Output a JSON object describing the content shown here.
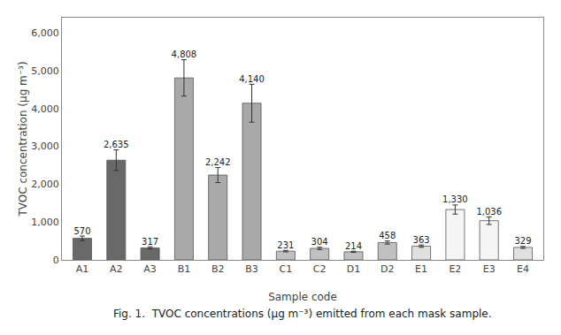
{
  "chart_data": {
    "type": "bar",
    "categories": [
      "A1",
      "A2",
      "A3",
      "B1",
      "B2",
      "B3",
      "C1",
      "C2",
      "D1",
      "D2",
      "E1",
      "E2",
      "E3",
      "E4"
    ],
    "values": [
      570,
      2635,
      317,
      4808,
      2242,
      4140,
      231,
      304,
      214,
      458,
      363,
      1330,
      1036,
      329
    ],
    "errors": [
      60,
      270,
      30,
      480,
      200,
      500,
      20,
      30,
      15,
      40,
      30,
      120,
      100,
      25
    ],
    "colors": [
      "#696969",
      "#696969",
      "#696969",
      "#a9a9a9",
      "#a9a9a9",
      "#a9a9a9",
      "#c0c0c0",
      "#c0c0c0",
      "#c0c0c0",
      "#c0c0c0",
      "#e0e0e0",
      "#f5f5f5",
      "#f5f5f5",
      "#e0e0e0"
    ],
    "data_labels": true,
    "value_labels": [
      "570",
      "2,635",
      "317",
      "4,808",
      "2,242",
      "4,140",
      "231",
      "304",
      "214",
      "458",
      "363",
      "1,330",
      "1,036",
      "329"
    ],
    "xlabel": "Sample code",
    "ylabel": "TVOC concentration (μg m⁻³)",
    "ylim": [
      0,
      6400
    ],
    "yticks": [
      0,
      {
        "value": 1000,
        "label": "1,000"
      },
      {
        "value": 2000,
        "label": "2,000"
      },
      {
        "value": 3000,
        "label": "3,000"
      },
      {
        "value": 4000,
        "label": "4,000"
      },
      {
        "value": 5000,
        "label": "5,000"
      },
      {
        "value": 6000,
        "label": "6,000"
      }
    ],
    "annotations": [
      "Fig. 1.  TVOC concentrations (μg m⁻³) emitted from each mask sample."
    ],
    "grid": false
  }
}
